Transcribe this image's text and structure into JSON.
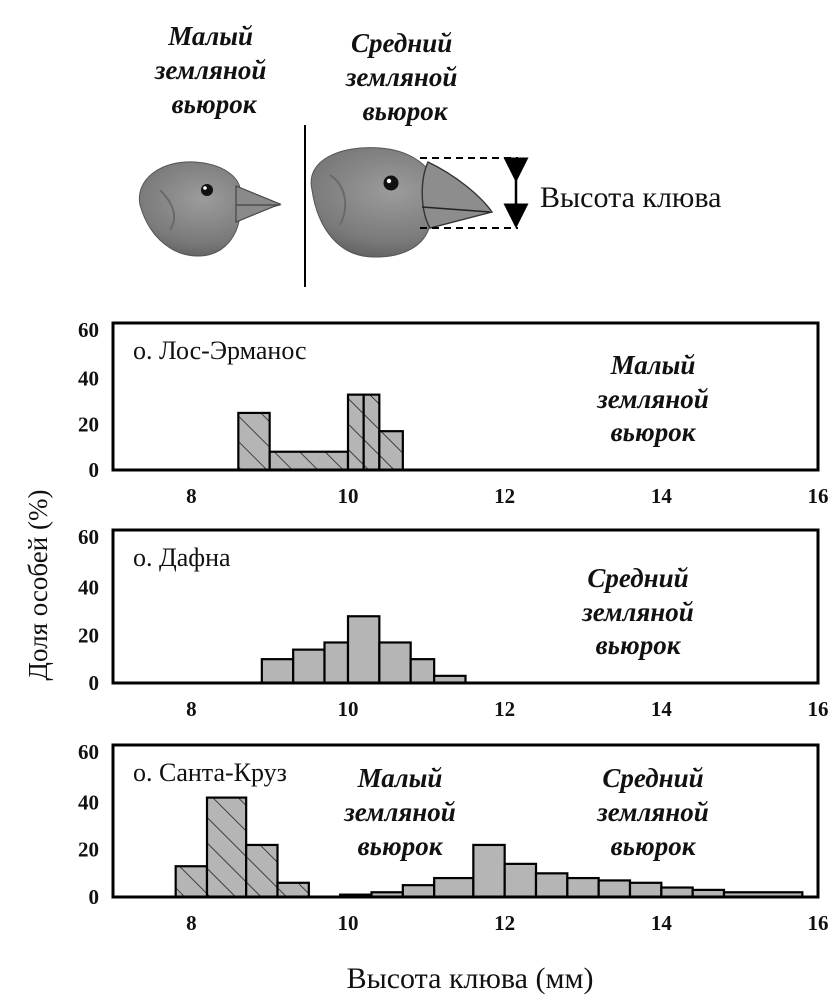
{
  "header": {
    "small_finch_label": [
      "Малый",
      "земляной",
      "вьюрок"
    ],
    "medium_finch_label": [
      "Средний",
      "земляной",
      "вьюрок"
    ],
    "beak_depth_label": "Высота клюва"
  },
  "colors": {
    "bar_fill": "#b5b5b5",
    "hatch": "#222222",
    "frame": "#000000"
  },
  "icons": [
    "small-finch-head-icon",
    "medium-finch-head-icon",
    "beak-depth-arrow-icon"
  ],
  "ylabel": "Доля особей (%)",
  "xlabel": "Высота клюва (мм)",
  "chart_data": [
    {
      "type": "bar",
      "island": "о. Лос-Эрманос",
      "xlim": [
        7,
        16
      ],
      "ylim": [
        0,
        60
      ],
      "xticks": [
        8,
        10,
        12,
        14,
        16
      ],
      "yticks": [
        0,
        20,
        40,
        60
      ],
      "species_labels": [
        [
          "Малый",
          "земляной",
          "вьюрок"
        ]
      ],
      "series": [
        {
          "name": "Малый земляной вьюрок",
          "hatched": true,
          "bins": [
            [
              8.6,
              9.0,
              25
            ],
            [
              9.0,
              10.0,
              8
            ],
            [
              10.0,
              10.2,
              33
            ],
            [
              10.2,
              10.4,
              33
            ],
            [
              10.4,
              10.7,
              17
            ]
          ]
        }
      ]
    },
    {
      "type": "bar",
      "island": "о. Дафна",
      "xlim": [
        7,
        16
      ],
      "ylim": [
        0,
        60
      ],
      "xticks": [
        8,
        10,
        12,
        14,
        16
      ],
      "yticks": [
        0,
        20,
        40,
        60
      ],
      "species_labels": [
        [
          "Средний",
          "земляной",
          "вьюрок"
        ]
      ],
      "series": [
        {
          "name": "Средний земляной вьюрок",
          "hatched": false,
          "bins": [
            [
              8.9,
              9.3,
              10
            ],
            [
              9.3,
              9.7,
              14
            ],
            [
              9.7,
              10.0,
              17
            ],
            [
              10.0,
              10.4,
              28
            ],
            [
              10.4,
              10.8,
              17
            ],
            [
              10.8,
              11.1,
              10
            ],
            [
              11.1,
              11.5,
              3
            ]
          ]
        }
      ]
    },
    {
      "type": "bar",
      "island": "о. Санта-Круз",
      "xlim": [
        7,
        16
      ],
      "ylim": [
        0,
        60
      ],
      "xticks": [
        8,
        10,
        12,
        14,
        16
      ],
      "yticks": [
        0,
        20,
        40,
        60
      ],
      "species_labels": [
        [
          "Малый",
          "земляной",
          "вьюрок"
        ],
        [
          "Средний",
          "земляной",
          "вьюрок"
        ]
      ],
      "series": [
        {
          "name": "Малый земляной вьюрок",
          "hatched": true,
          "bins": [
            [
              7.8,
              8.2,
              13
            ],
            [
              8.2,
              8.7,
              42
            ],
            [
              8.7,
              9.1,
              22
            ],
            [
              9.1,
              9.5,
              6
            ]
          ]
        },
        {
          "name": "Средний земляной вьюрок",
          "hatched": false,
          "bins": [
            [
              9.9,
              10.3,
              1
            ],
            [
              10.3,
              10.7,
              2
            ],
            [
              10.7,
              11.1,
              5
            ],
            [
              11.1,
              11.6,
              8
            ],
            [
              11.6,
              12.0,
              22
            ],
            [
              12.0,
              12.4,
              14
            ],
            [
              12.4,
              12.8,
              10
            ],
            [
              12.8,
              13.2,
              8
            ],
            [
              13.2,
              13.6,
              7
            ],
            [
              13.6,
              14.0,
              6
            ],
            [
              14.0,
              14.4,
              4
            ],
            [
              14.4,
              14.8,
              3
            ],
            [
              14.8,
              15.8,
              2
            ]
          ]
        }
      ]
    }
  ]
}
